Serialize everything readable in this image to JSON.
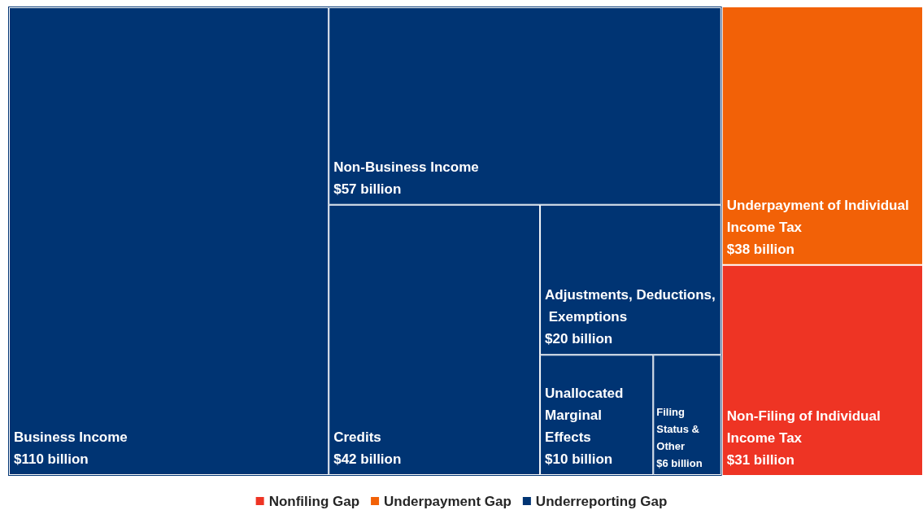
{
  "chart_data": {
    "type": "other",
    "categories": [
      "Business Income",
      "Non-Business Income",
      "Credits",
      "Adjustments, Deductions, Exemptions",
      "Unallocated Marginal Effects",
      "Filing Status & Other",
      "Underpayment of Individual Income Tax",
      "Non-Filing of Individual Income Tax"
    ],
    "series": [
      {
        "name": "Nonfiling Gap",
        "color": "#ee3424",
        "values": [
          null,
          null,
          null,
          null,
          null,
          null,
          null,
          31
        ],
        "value_labels": [
          null,
          null,
          null,
          null,
          null,
          null,
          null,
          "$31 billion"
        ]
      },
      {
        "name": "Underpayment Gap",
        "color": "#f26107",
        "values": [
          null,
          null,
          null,
          null,
          null,
          null,
          38,
          null
        ],
        "value_labels": [
          null,
          null,
          null,
          null,
          null,
          null,
          "$38 billion",
          null
        ]
      },
      {
        "name": "Underreporting Gap",
        "color": "#003473",
        "values": [
          110,
          57,
          42,
          20,
          10,
          6,
          null,
          null
        ],
        "value_labels": [
          "$110 billion",
          "$57 billion",
          "$42 billion",
          "$20 billion",
          "$10 billion",
          "$6 billion",
          null,
          null
        ]
      }
    ],
    "legend": "bottom"
  }
}
